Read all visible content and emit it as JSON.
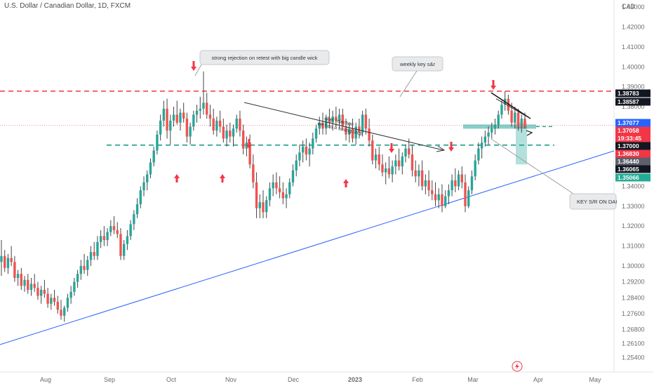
{
  "header": {
    "title": "U.S. Dollar / Canadian Dollar, 1D, FXCM",
    "currency": "CAD"
  },
  "colors": {
    "up": "#26a69a",
    "down": "#ef5350",
    "wick": "#555555",
    "resistance": "#f23645",
    "support": "#089981",
    "trendline": "#2962ff",
    "arrow_down": "#f23645",
    "arrow_up": "#f23645"
  },
  "chart_data": {
    "type": "candlestick",
    "ylim": [
      1.2485,
      1.4336
    ],
    "y_ticks": [
      "1.43000",
      "1.42000",
      "1.41000",
      "1.40000",
      "1.39000",
      "1.38000",
      "1.37000",
      "1.36000",
      "1.35000",
      "1.34000",
      "1.33000",
      "1.32000",
      "1.31000",
      "1.30000",
      "1.29200",
      "1.28400",
      "1.27600",
      "1.26800",
      "1.26100",
      "1.25400"
    ],
    "x_ticks": [
      "Aug",
      "Sep",
      "Oct",
      "Nov",
      "Dec",
      "2023",
      "Feb",
      "Mar",
      "Apr",
      "May"
    ],
    "price_labels": [
      {
        "text": "1.38783",
        "style": "black"
      },
      {
        "text": "1.38587",
        "style": "black"
      },
      {
        "text": "1.37077",
        "style": "blue"
      },
      {
        "text": "1.37058",
        "style": "red"
      },
      {
        "text": "19:33:45",
        "style": "red"
      },
      {
        "text": "1.37000",
        "style": "black"
      },
      {
        "text": "1.36830",
        "style": "red"
      },
      {
        "text": "1.36440",
        "style": "gray"
      },
      {
        "text": "1.36065",
        "style": "black"
      },
      {
        "text": "1.35066",
        "style": "teal"
      }
    ],
    "levels": [
      {
        "name": "resistance",
        "y": 1.3878
      },
      {
        "name": "support",
        "y": 1.3607
      },
      {
        "name": "last-price",
        "y": 1.3706
      }
    ],
    "candles_ohlc": [
      [
        1.302,
        1.313,
        1.295,
        1.305
      ],
      [
        1.305,
        1.308,
        1.297,
        1.299
      ],
      [
        1.299,
        1.306,
        1.296,
        1.304
      ],
      [
        1.304,
        1.31,
        1.3,
        1.302
      ],
      [
        1.302,
        1.305,
        1.292,
        1.294
      ],
      [
        1.294,
        1.298,
        1.29,
        1.296
      ],
      [
        1.296,
        1.299,
        1.288,
        1.29
      ],
      [
        1.29,
        1.295,
        1.287,
        1.293
      ],
      [
        1.293,
        1.296,
        1.286,
        1.288
      ],
      [
        1.288,
        1.294,
        1.285,
        1.291
      ],
      [
        1.291,
        1.296,
        1.287,
        1.289
      ],
      [
        1.289,
        1.292,
        1.283,
        1.285
      ],
      [
        1.285,
        1.29,
        1.281,
        1.288
      ],
      [
        1.288,
        1.293,
        1.284,
        1.286
      ],
      [
        1.286,
        1.289,
        1.279,
        1.281
      ],
      [
        1.281,
        1.286,
        1.278,
        1.284
      ],
      [
        1.284,
        1.288,
        1.28,
        1.282
      ],
      [
        1.282,
        1.285,
        1.276,
        1.278
      ],
      [
        1.278,
        1.283,
        1.273,
        1.275
      ],
      [
        1.275,
        1.28,
        1.272,
        1.279
      ],
      [
        1.279,
        1.286,
        1.277,
        1.284
      ],
      [
        1.284,
        1.29,
        1.281,
        1.287
      ],
      [
        1.287,
        1.294,
        1.285,
        1.292
      ],
      [
        1.292,
        1.298,
        1.289,
        1.296
      ],
      [
        1.296,
        1.303,
        1.293,
        1.3
      ],
      [
        1.3,
        1.306,
        1.296,
        1.298
      ],
      [
        1.298,
        1.305,
        1.295,
        1.303
      ],
      [
        1.303,
        1.31,
        1.3,
        1.307
      ],
      [
        1.307,
        1.312,
        1.303,
        1.305
      ],
      [
        1.305,
        1.315,
        1.303,
        1.312
      ],
      [
        1.312,
        1.318,
        1.309,
        1.315
      ],
      [
        1.315,
        1.32,
        1.31,
        1.313
      ],
      [
        1.313,
        1.319,
        1.31,
        1.317
      ],
      [
        1.317,
        1.323,
        1.315,
        1.32
      ],
      [
        1.32,
        1.325,
        1.316,
        1.318
      ],
      [
        1.318,
        1.322,
        1.314,
        1.316
      ],
      [
        1.316,
        1.319,
        1.303,
        1.305
      ],
      [
        1.305,
        1.313,
        1.303,
        1.311
      ],
      [
        1.311,
        1.318,
        1.308,
        1.315
      ],
      [
        1.315,
        1.323,
        1.313,
        1.321
      ],
      [
        1.321,
        1.328,
        1.318,
        1.326
      ],
      [
        1.326,
        1.334,
        1.324,
        1.331
      ],
      [
        1.331,
        1.34,
        1.329,
        1.338
      ],
      [
        1.338,
        1.345,
        1.335,
        1.342
      ],
      [
        1.342,
        1.348,
        1.338,
        1.346
      ],
      [
        1.346,
        1.354,
        1.344,
        1.352
      ],
      [
        1.352,
        1.36,
        1.35,
        1.358
      ],
      [
        1.358,
        1.368,
        1.356,
        1.366
      ],
      [
        1.366,
        1.376,
        1.363,
        1.373
      ],
      [
        1.373,
        1.383,
        1.37,
        1.379
      ],
      [
        1.379,
        1.384,
        1.364,
        1.368
      ],
      [
        1.368,
        1.376,
        1.361,
        1.373
      ],
      [
        1.373,
        1.38,
        1.37,
        1.376
      ],
      [
        1.376,
        1.383,
        1.371,
        1.372
      ],
      [
        1.372,
        1.379,
        1.368,
        1.377
      ],
      [
        1.377,
        1.382,
        1.372,
        1.374
      ],
      [
        1.374,
        1.377,
        1.362,
        1.365
      ],
      [
        1.365,
        1.372,
        1.361,
        1.37
      ],
      [
        1.37,
        1.378,
        1.368,
        1.376
      ],
      [
        1.376,
        1.381,
        1.372,
        1.378
      ],
      [
        1.378,
        1.385,
        1.374,
        1.379
      ],
      [
        1.379,
        1.3977,
        1.376,
        1.382
      ],
      [
        1.382,
        1.387,
        1.374,
        1.376
      ],
      [
        1.376,
        1.381,
        1.37,
        1.374
      ],
      [
        1.374,
        1.379,
        1.366,
        1.368
      ],
      [
        1.368,
        1.375,
        1.365,
        1.373
      ],
      [
        1.373,
        1.378,
        1.367,
        1.37
      ],
      [
        1.37,
        1.374,
        1.362,
        1.364
      ],
      [
        1.364,
        1.371,
        1.36,
        1.368
      ],
      [
        1.368,
        1.372,
        1.362,
        1.365
      ],
      [
        1.365,
        1.371,
        1.36,
        1.369
      ],
      [
        1.369,
        1.376,
        1.367,
        1.374
      ],
      [
        1.374,
        1.378,
        1.365,
        1.368
      ],
      [
        1.368,
        1.371,
        1.356,
        1.359
      ],
      [
        1.359,
        1.365,
        1.355,
        1.362
      ],
      [
        1.362,
        1.366,
        1.349,
        1.351
      ],
      [
        1.351,
        1.356,
        1.339,
        1.342
      ],
      [
        1.342,
        1.347,
        1.324,
        1.329
      ],
      [
        1.329,
        1.336,
        1.324,
        1.332
      ],
      [
        1.332,
        1.338,
        1.324,
        1.327
      ],
      [
        1.327,
        1.335,
        1.324,
        1.333
      ],
      [
        1.333,
        1.342,
        1.33,
        1.339
      ],
      [
        1.339,
        1.346,
        1.335,
        1.342
      ],
      [
        1.342,
        1.347,
        1.336,
        1.339
      ],
      [
        1.339,
        1.345,
        1.334,
        1.337
      ],
      [
        1.337,
        1.342,
        1.331,
        1.334
      ],
      [
        1.334,
        1.339,
        1.329,
        1.336
      ],
      [
        1.336,
        1.344,
        1.334,
        1.342
      ],
      [
        1.342,
        1.351,
        1.34,
        1.348
      ],
      [
        1.348,
        1.356,
        1.345,
        1.353
      ],
      [
        1.353,
        1.361,
        1.35,
        1.357
      ],
      [
        1.357,
        1.363,
        1.352,
        1.36
      ],
      [
        1.36,
        1.364,
        1.353,
        1.356
      ],
      [
        1.356,
        1.362,
        1.35,
        1.359
      ],
      [
        1.359,
        1.367,
        1.356,
        1.364
      ],
      [
        1.364,
        1.371,
        1.362,
        1.369
      ],
      [
        1.369,
        1.375,
        1.366,
        1.372
      ],
      [
        1.372,
        1.377,
        1.366,
        1.369
      ],
      [
        1.369,
        1.376,
        1.366,
        1.374
      ],
      [
        1.374,
        1.379,
        1.369,
        1.372
      ],
      [
        1.372,
        1.378,
        1.368,
        1.375
      ],
      [
        1.375,
        1.38,
        1.37,
        1.373
      ],
      [
        1.373,
        1.379,
        1.369,
        1.376
      ],
      [
        1.376,
        1.379,
        1.368,
        1.37
      ],
      [
        1.37,
        1.374,
        1.363,
        1.366
      ],
      [
        1.366,
        1.372,
        1.362,
        1.369
      ],
      [
        1.369,
        1.374,
        1.362,
        1.364
      ],
      [
        1.364,
        1.372,
        1.361,
        1.37
      ],
      [
        1.37,
        1.374,
        1.364,
        1.367
      ],
      [
        1.367,
        1.378,
        1.365,
        1.376
      ],
      [
        1.376,
        1.379,
        1.366,
        1.369
      ],
      [
        1.369,
        1.374,
        1.36,
        1.363
      ],
      [
        1.363,
        1.366,
        1.351,
        1.353
      ],
      [
        1.353,
        1.359,
        1.349,
        1.356
      ],
      [
        1.356,
        1.36,
        1.348,
        1.351
      ],
      [
        1.351,
        1.356,
        1.345,
        1.347
      ],
      [
        1.347,
        1.352,
        1.341,
        1.349
      ],
      [
        1.349,
        1.355,
        1.344,
        1.346
      ],
      [
        1.346,
        1.353,
        1.342,
        1.35
      ],
      [
        1.35,
        1.356,
        1.346,
        1.353
      ],
      [
        1.353,
        1.359,
        1.348,
        1.35
      ],
      [
        1.35,
        1.357,
        1.346,
        1.355
      ],
      [
        1.355,
        1.361,
        1.352,
        1.359
      ],
      [
        1.359,
        1.364,
        1.354,
        1.356
      ],
      [
        1.356,
        1.361,
        1.345,
        1.348
      ],
      [
        1.348,
        1.353,
        1.342,
        1.345
      ],
      [
        1.345,
        1.351,
        1.34,
        1.348
      ],
      [
        1.348,
        1.353,
        1.338,
        1.34
      ],
      [
        1.34,
        1.346,
        1.336,
        1.343
      ],
      [
        1.343,
        1.348,
        1.335,
        1.338
      ],
      [
        1.338,
        1.343,
        1.333,
        1.336
      ],
      [
        1.336,
        1.342,
        1.33,
        1.333
      ],
      [
        1.333,
        1.339,
        1.329,
        1.336
      ],
      [
        1.336,
        1.341,
        1.327,
        1.33
      ],
      [
        1.33,
        1.338,
        1.329,
        1.335
      ],
      [
        1.335,
        1.341,
        1.331,
        1.338
      ],
      [
        1.338,
        1.346,
        1.335,
        1.343
      ],
      [
        1.343,
        1.349,
        1.337,
        1.34
      ],
      [
        1.34,
        1.348,
        1.338,
        1.346
      ],
      [
        1.346,
        1.35,
        1.339,
        1.342
      ],
      [
        1.342,
        1.346,
        1.327,
        1.33
      ],
      [
        1.33,
        1.34,
        1.329,
        1.338
      ],
      [
        1.338,
        1.348,
        1.336,
        1.345
      ],
      [
        1.345,
        1.356,
        1.343,
        1.353
      ],
      [
        1.353,
        1.362,
        1.351,
        1.359
      ],
      [
        1.359,
        1.365,
        1.354,
        1.362
      ],
      [
        1.362,
        1.368,
        1.36,
        1.365
      ],
      [
        1.365,
        1.37,
        1.361,
        1.367
      ],
      [
        1.367,
        1.372,
        1.364,
        1.369
      ],
      [
        1.369,
        1.374,
        1.366,
        1.371
      ],
      [
        1.371,
        1.378,
        1.369,
        1.376
      ],
      [
        1.376,
        1.383,
        1.374,
        1.381
      ],
      [
        1.381,
        1.3878,
        1.378,
        1.384
      ],
      [
        1.384,
        1.386,
        1.376,
        1.378
      ],
      [
        1.378,
        1.382,
        1.37,
        1.372
      ],
      [
        1.372,
        1.38,
        1.369,
        1.377
      ],
      [
        1.377,
        1.379,
        1.368,
        1.371
      ],
      [
        1.371,
        1.376,
        1.367,
        1.374
      ],
      [
        1.374,
        1.377,
        1.369,
        1.3706
      ]
    ],
    "annotations": [
      {
        "text": "strong rejection on retest with big candle wick"
      },
      {
        "text": "weekly key s&r"
      },
      {
        "text": "after rejection"
      },
      {
        "text": "we had a strong drop"
      },
      {
        "text": "KEY S/R ON DAI"
      }
    ],
    "grid": false
  }
}
